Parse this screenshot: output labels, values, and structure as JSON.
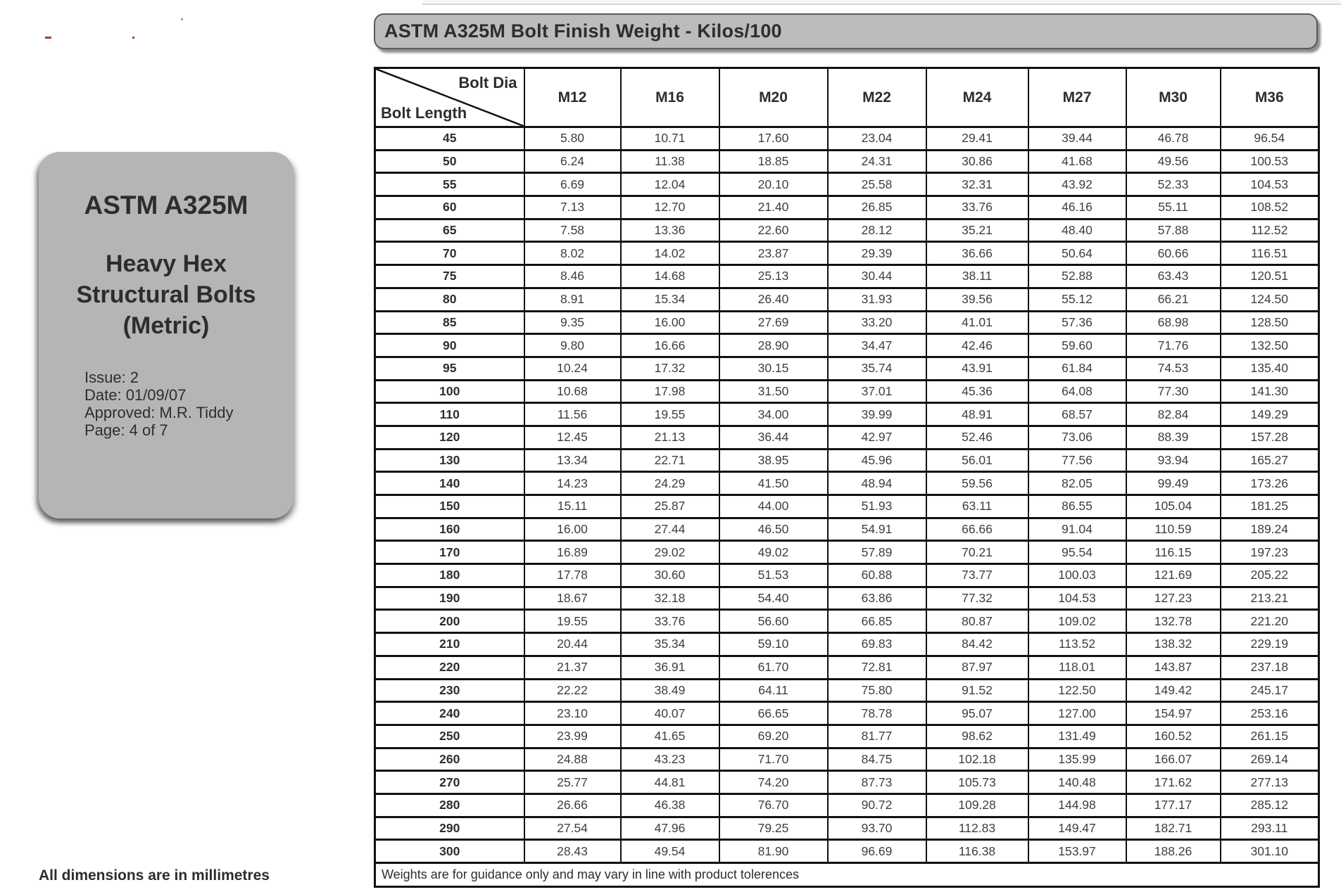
{
  "page": {
    "title": "ASTM A325M Bolt Finish Weight - Kilos/100",
    "footer_note": "Weights are for guidance only and may vary in line with product tolerences",
    "dimensions_note": "All dimensions are in millimetres"
  },
  "theme": {
    "card_gray": "#b5b5b5",
    "bar_gray": "#bcbcbc",
    "border_black": "#111111",
    "text_dark": "#2d2d2d",
    "mark_red": "#b03a2e"
  },
  "sidebar": {
    "title": "ASTM A325M",
    "subtitle_lines": [
      "Heavy Hex",
      "Structural Bolts",
      "(Metric)"
    ],
    "details": [
      "Issue: 2",
      "Date: 01/09/07",
      "Approved: M.R. Tiddy",
      "Page: 4 of 7"
    ]
  },
  "table": {
    "corner": {
      "top": "Bolt Dia",
      "bottom": "Bolt Length"
    },
    "columns": [
      "M12",
      "M16",
      "M20",
      "M22",
      "M24",
      "M27",
      "M30",
      "M36"
    ],
    "rows": [
      {
        "length": "45",
        "values": [
          "5.80",
          "10.71",
          "17.60",
          "23.04",
          "29.41",
          "39.44",
          "46.78",
          "96.54"
        ]
      },
      {
        "length": "50",
        "values": [
          "6.24",
          "11.38",
          "18.85",
          "24.31",
          "30.86",
          "41.68",
          "49.56",
          "100.53"
        ]
      },
      {
        "length": "55",
        "values": [
          "6.69",
          "12.04",
          "20.10",
          "25.58",
          "32.31",
          "43.92",
          "52.33",
          "104.53"
        ]
      },
      {
        "length": "60",
        "values": [
          "7.13",
          "12.70",
          "21.40",
          "26.85",
          "33.76",
          "46.16",
          "55.11",
          "108.52"
        ]
      },
      {
        "length": "65",
        "values": [
          "7.58",
          "13.36",
          "22.60",
          "28.12",
          "35.21",
          "48.40",
          "57.88",
          "112.52"
        ]
      },
      {
        "length": "70",
        "values": [
          "8.02",
          "14.02",
          "23.87",
          "29.39",
          "36.66",
          "50.64",
          "60.66",
          "116.51"
        ]
      },
      {
        "length": "75",
        "values": [
          "8.46",
          "14.68",
          "25.13",
          "30.44",
          "38.11",
          "52.88",
          "63.43",
          "120.51"
        ]
      },
      {
        "length": "80",
        "values": [
          "8.91",
          "15.34",
          "26.40",
          "31.93",
          "39.56",
          "55.12",
          "66.21",
          "124.50"
        ]
      },
      {
        "length": "85",
        "values": [
          "9.35",
          "16.00",
          "27.69",
          "33.20",
          "41.01",
          "57.36",
          "68.98",
          "128.50"
        ]
      },
      {
        "length": "90",
        "values": [
          "9.80",
          "16.66",
          "28.90",
          "34.47",
          "42.46",
          "59.60",
          "71.76",
          "132.50"
        ]
      },
      {
        "length": "95",
        "values": [
          "10.24",
          "17.32",
          "30.15",
          "35.74",
          "43.91",
          "61.84",
          "74.53",
          "135.40"
        ]
      },
      {
        "length": "100",
        "values": [
          "10.68",
          "17.98",
          "31.50",
          "37.01",
          "45.36",
          "64.08",
          "77.30",
          "141.30"
        ]
      },
      {
        "length": "110",
        "values": [
          "11.56",
          "19.55",
          "34.00",
          "39.99",
          "48.91",
          "68.57",
          "82.84",
          "149.29"
        ]
      },
      {
        "length": "120",
        "values": [
          "12.45",
          "21.13",
          "36.44",
          "42.97",
          "52.46",
          "73.06",
          "88.39",
          "157.28"
        ]
      },
      {
        "length": "130",
        "values": [
          "13.34",
          "22.71",
          "38.95",
          "45.96",
          "56.01",
          "77.56",
          "93.94",
          "165.27"
        ]
      },
      {
        "length": "140",
        "values": [
          "14.23",
          "24.29",
          "41.50",
          "48.94",
          "59.56",
          "82.05",
          "99.49",
          "173.26"
        ]
      },
      {
        "length": "150",
        "values": [
          "15.11",
          "25.87",
          "44.00",
          "51.93",
          "63.11",
          "86.55",
          "105.04",
          "181.25"
        ]
      },
      {
        "length": "160",
        "values": [
          "16.00",
          "27.44",
          "46.50",
          "54.91",
          "66.66",
          "91.04",
          "110.59",
          "189.24"
        ]
      },
      {
        "length": "170",
        "values": [
          "16.89",
          "29.02",
          "49.02",
          "57.89",
          "70.21",
          "95.54",
          "116.15",
          "197.23"
        ]
      },
      {
        "length": "180",
        "values": [
          "17.78",
          "30.60",
          "51.53",
          "60.88",
          "73.77",
          "100.03",
          "121.69",
          "205.22"
        ]
      },
      {
        "length": "190",
        "values": [
          "18.67",
          "32.18",
          "54.40",
          "63.86",
          "77.32",
          "104.53",
          "127.23",
          "213.21"
        ]
      },
      {
        "length": "200",
        "values": [
          "19.55",
          "33.76",
          "56.60",
          "66.85",
          "80.87",
          "109.02",
          "132.78",
          "221.20"
        ]
      },
      {
        "length": "210",
        "values": [
          "20.44",
          "35.34",
          "59.10",
          "69.83",
          "84.42",
          "113.52",
          "138.32",
          "229.19"
        ]
      },
      {
        "length": "220",
        "values": [
          "21.37",
          "36.91",
          "61.70",
          "72.81",
          "87.97",
          "118.01",
          "143.87",
          "237.18"
        ]
      },
      {
        "length": "230",
        "values": [
          "22.22",
          "38.49",
          "64.11",
          "75.80",
          "91.52",
          "122.50",
          "149.42",
          "245.17"
        ]
      },
      {
        "length": "240",
        "values": [
          "23.10",
          "40.07",
          "66.65",
          "78.78",
          "95.07",
          "127.00",
          "154.97",
          "253.16"
        ]
      },
      {
        "length": "250",
        "values": [
          "23.99",
          "41.65",
          "69.20",
          "81.77",
          "98.62",
          "131.49",
          "160.52",
          "261.15"
        ]
      },
      {
        "length": "260",
        "values": [
          "24.88",
          "43.23",
          "71.70",
          "84.75",
          "102.18",
          "135.99",
          "166.07",
          "269.14"
        ]
      },
      {
        "length": "270",
        "values": [
          "25.77",
          "44.81",
          "74.20",
          "87.73",
          "105.73",
          "140.48",
          "171.62",
          "277.13"
        ]
      },
      {
        "length": "280",
        "values": [
          "26.66",
          "46.38",
          "76.70",
          "90.72",
          "109.28",
          "144.98",
          "177.17",
          "285.12"
        ]
      },
      {
        "length": "290",
        "values": [
          "27.54",
          "47.96",
          "79.25",
          "93.70",
          "112.83",
          "149.47",
          "182.71",
          "293.11"
        ]
      },
      {
        "length": "300",
        "values": [
          "28.43",
          "49.54",
          "81.90",
          "96.69",
          "116.38",
          "153.97",
          "188.26",
          "301.10"
        ]
      }
    ]
  }
}
